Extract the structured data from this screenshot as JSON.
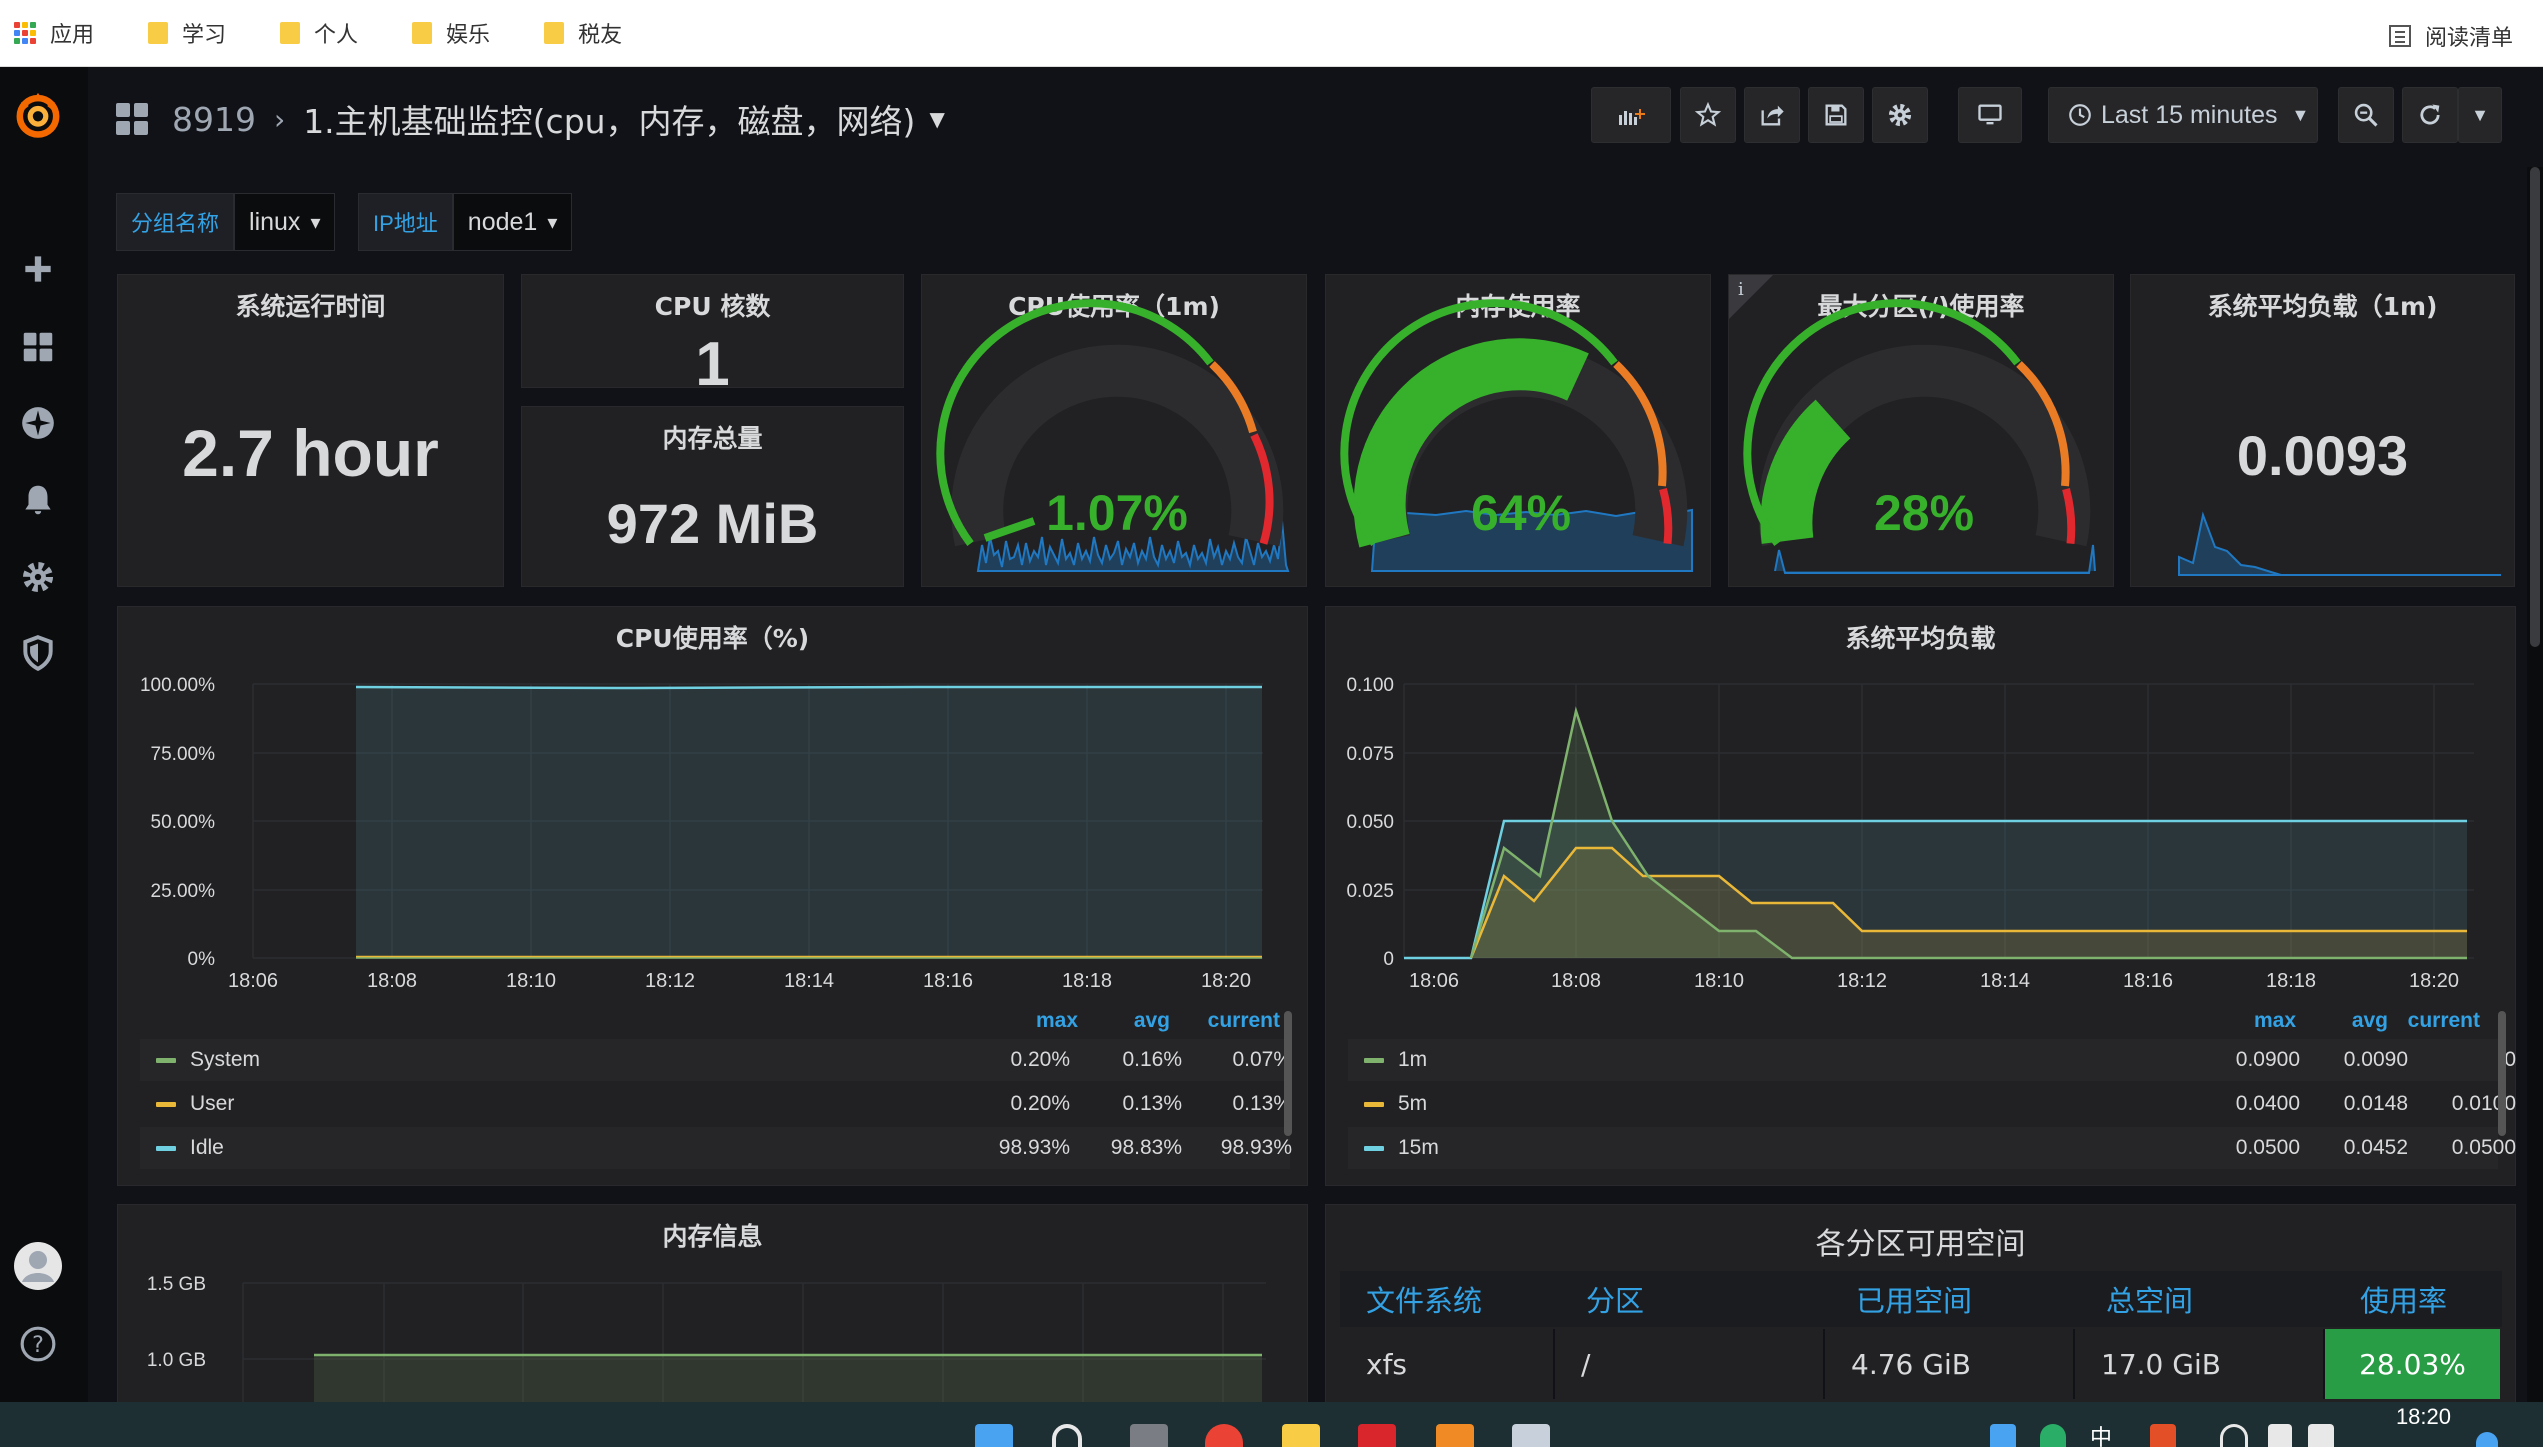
{
  "bookmarks": {
    "apps_label": "应用",
    "items": [
      "学习",
      "个人",
      "娱乐",
      "税友"
    ],
    "reading_list": "阅读清单",
    "folder_color": "#f8cd45"
  },
  "nav": {
    "folder": "8919",
    "title": "1.主机基础监控(cpu，内存，磁盘，网络)",
    "time_range": "Last 15 minutes"
  },
  "variables": [
    {
      "label": "分组名称",
      "value": "linux"
    },
    {
      "label": "IP地址",
      "value": "node1"
    }
  ],
  "stats": {
    "uptime": {
      "title": "系统运行时间",
      "value": "2.7 hour"
    },
    "cpu_cores": {
      "title": "CPU 核数",
      "value": "1"
    },
    "mem_total": {
      "title": "内存总量",
      "value": "972 MiB"
    },
    "cpu_usage": {
      "title": "CPU使用率（1m)",
      "value": "1.07%",
      "percent": 1.07
    },
    "mem_usage": {
      "title": "内存使用率",
      "value": "64%",
      "percent": 64
    },
    "disk_usage": {
      "title": "最大分区(/)使用率",
      "value": "28%",
      "percent": 28,
      "info": "i"
    },
    "load_avg": {
      "title": "系统平均负载（1m)",
      "value": "0.0093"
    }
  },
  "colors": {
    "green": "#37b02b",
    "orange": "#ea7c26",
    "red": "#e0282e",
    "blue": "#1f78c1",
    "accent": "#33a2e5",
    "series_green": "#7eb26d",
    "series_yellow": "#eab839",
    "series_cyan": "#6ed0e0"
  },
  "cpu_graph": {
    "title": "CPU使用率（%)",
    "y_ticks": [
      "100.00%",
      "75.00%",
      "50.00%",
      "25.00%",
      "0%"
    ],
    "x_ticks": [
      "18:06",
      "18:08",
      "18:10",
      "18:12",
      "18:14",
      "18:16",
      "18:18",
      "18:20"
    ],
    "legend_headers": [
      "max",
      "avg",
      "current"
    ],
    "series": [
      {
        "name": "System",
        "max": "0.20%",
        "avg": "0.16%",
        "current": "0.07%"
      },
      {
        "name": "User",
        "max": "0.20%",
        "avg": "0.13%",
        "current": "0.13%"
      },
      {
        "name": "Idle",
        "max": "98.93%",
        "avg": "98.83%",
        "current": "98.93%"
      }
    ]
  },
  "load_graph": {
    "title": "系统平均负载",
    "y_ticks": [
      "0.100",
      "0.075",
      "0.050",
      "0.025",
      "0"
    ],
    "x_ticks": [
      "18:06",
      "18:08",
      "18:10",
      "18:12",
      "18:14",
      "18:16",
      "18:18",
      "18:20"
    ],
    "legend_headers": [
      "max",
      "avg",
      "current"
    ],
    "series": [
      {
        "name": "1m",
        "max": "0.0900",
        "avg": "0.0090",
        "current": "0"
      },
      {
        "name": "5m",
        "max": "0.0400",
        "avg": "0.0148",
        "current": "0.0100"
      },
      {
        "name": "15m",
        "max": "0.0500",
        "avg": "0.0452",
        "current": "0.0500"
      }
    ]
  },
  "mem_graph": {
    "title": "内存信息",
    "y_ticks": [
      "1.5 GB",
      "1.0 GB"
    ]
  },
  "disk_table": {
    "title": "各分区可用空间",
    "headers": [
      "文件系统",
      "分区",
      "已用空间",
      "总空间",
      "使用率"
    ],
    "rows": [
      {
        "fs": "xfs",
        "mount": "/",
        "used": "4.76 GiB",
        "total": "17.0 GiB",
        "usage": "28.03%"
      }
    ]
  },
  "taskbar": {
    "time": "18:20",
    "ime": "中"
  }
}
